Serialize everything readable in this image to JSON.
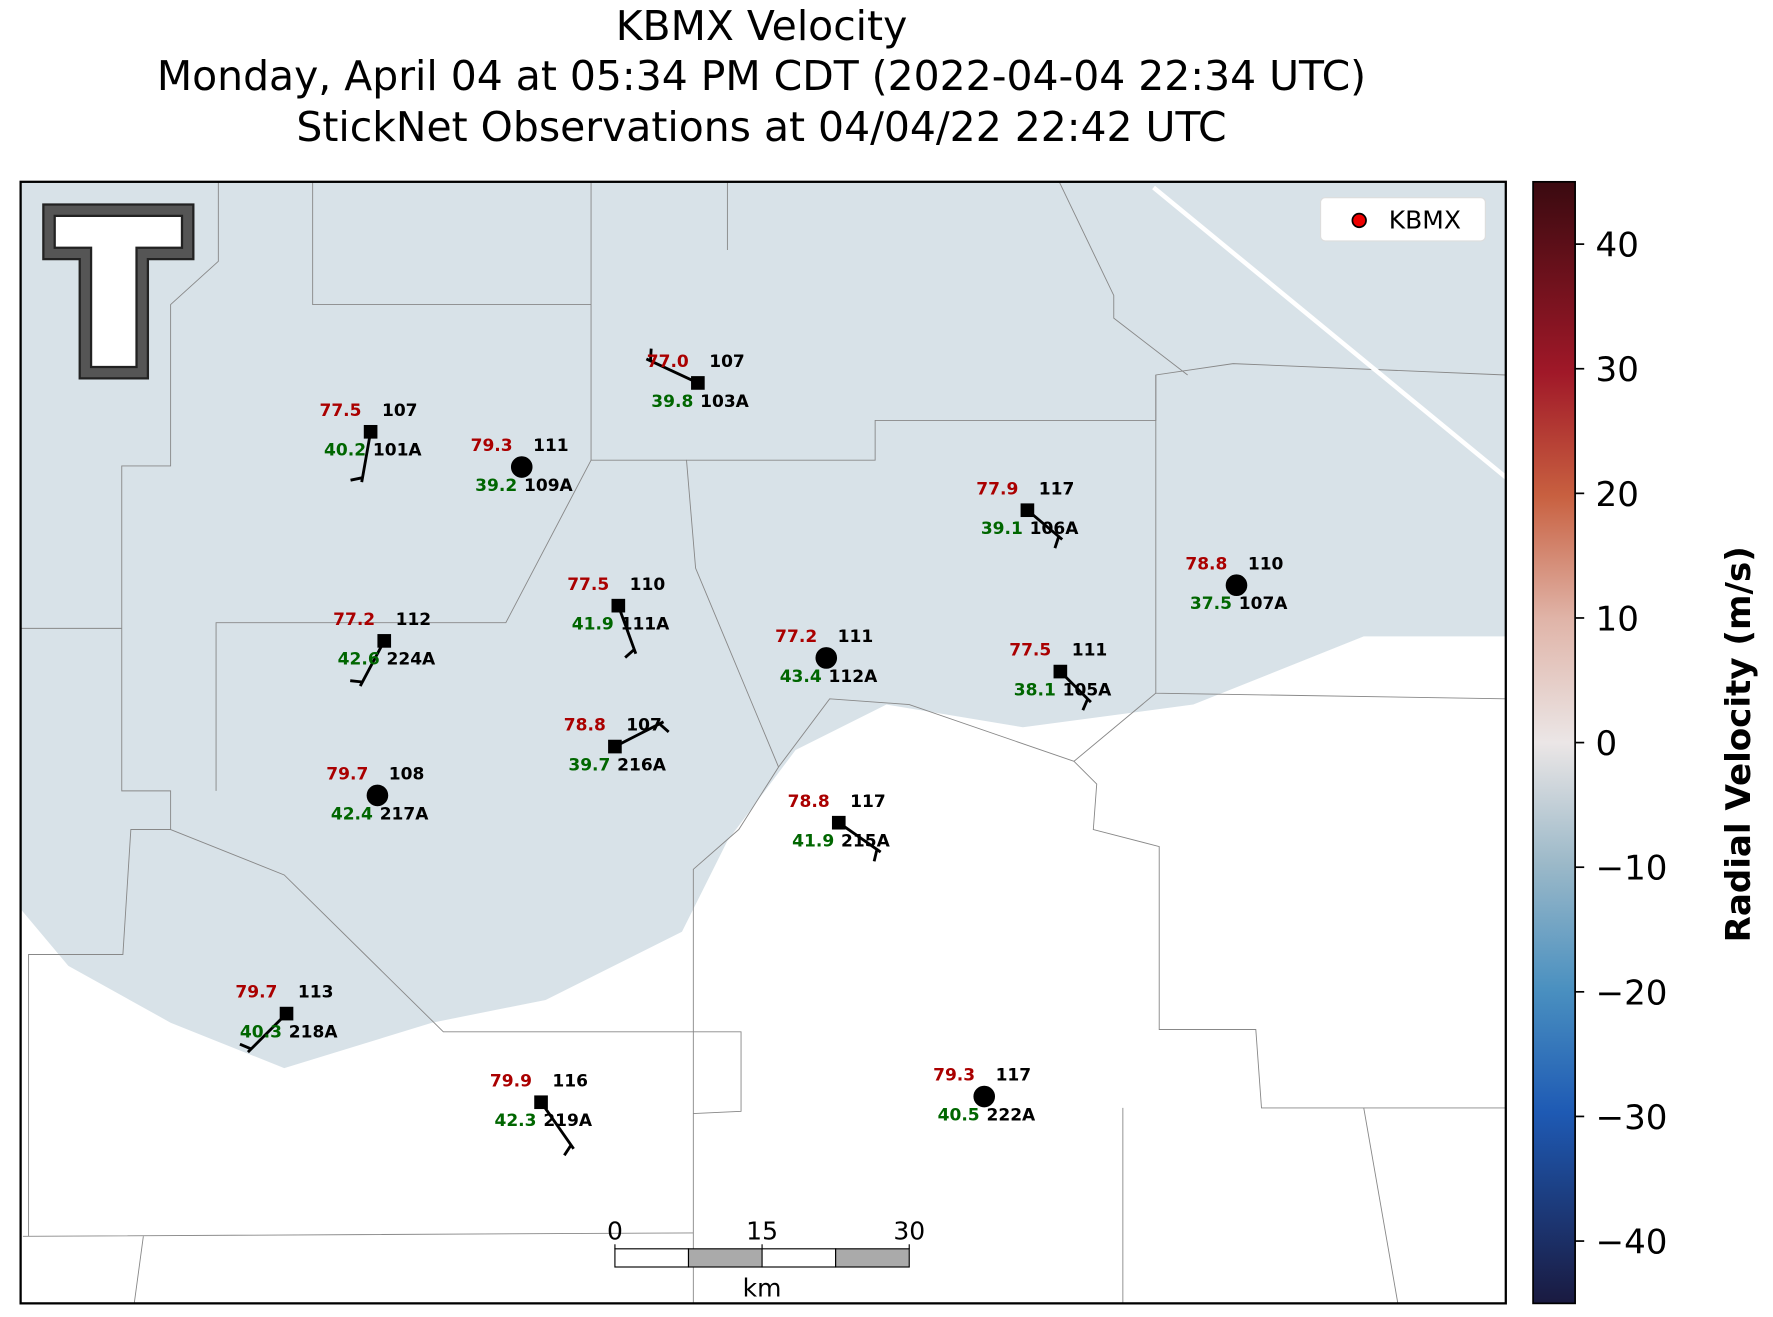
{
  "title": [
    "KBMX Velocity",
    "Monday, April 04 at 05:34 PM CDT (2022-04-04 22:34 UTC)",
    "StickNet Observations at 04/04/22 22:42 UTC"
  ],
  "legend": "KBMX",
  "colorbar": {
    "label": "Radial Velocity (m/s)",
    "range": [
      -45,
      45
    ],
    "ticks": [
      {
        "value": -40,
        "label": "−40"
      },
      {
        "value": -30,
        "label": "−30"
      },
      {
        "value": -20,
        "label": "−20"
      },
      {
        "value": -10,
        "label": "−10"
      },
      0,
      10,
      20,
      30,
      40
    ]
  },
  "scale_bar": {
    "ticks": [
      0,
      15,
      30
    ],
    "unit": "km"
  },
  "stations": [
    {
      "id": "101A",
      "temp": "77.5",
      "dewpoint": "40.2",
      "value": "107"
    },
    {
      "id": "109A",
      "temp": "79.3",
      "dewpoint": "39.2",
      "value": "111"
    },
    {
      "id": "103A",
      "temp": "77.0",
      "dewpoint": "39.8",
      "value": "107"
    },
    {
      "id": "106A",
      "temp": "77.9",
      "dewpoint": "39.1",
      "value": "117"
    },
    {
      "id": "107A",
      "temp": "78.8",
      "dewpoint": "37.5",
      "value": "110"
    },
    {
      "id": "111A",
      "temp": "77.5",
      "dewpoint": "41.9",
      "value": "110"
    },
    {
      "id": "224A",
      "temp": "77.2",
      "dewpoint": "42.6",
      "value": "112"
    },
    {
      "id": "112A",
      "temp": "77.2",
      "dewpoint": "43.4",
      "value": "111"
    },
    {
      "id": "105A",
      "temp": "77.5",
      "dewpoint": "38.1",
      "value": "111"
    },
    {
      "id": "216A",
      "temp": "78.8",
      "dewpoint": "39.7",
      "value": "107"
    },
    {
      "id": "217A",
      "temp": "79.7",
      "dewpoint": "42.4",
      "value": "108"
    },
    {
      "id": "215A",
      "temp": "78.8",
      "dewpoint": "41.9",
      "value": "117"
    },
    {
      "id": "218A",
      "temp": "79.7",
      "dewpoint": "40.3",
      "value": "113"
    },
    {
      "id": "219A",
      "temp": "79.9",
      "dewpoint": "42.3",
      "value": "116"
    },
    {
      "id": "222A",
      "temp": "79.3",
      "dewpoint": "40.5",
      "value": "117"
    }
  ]
}
